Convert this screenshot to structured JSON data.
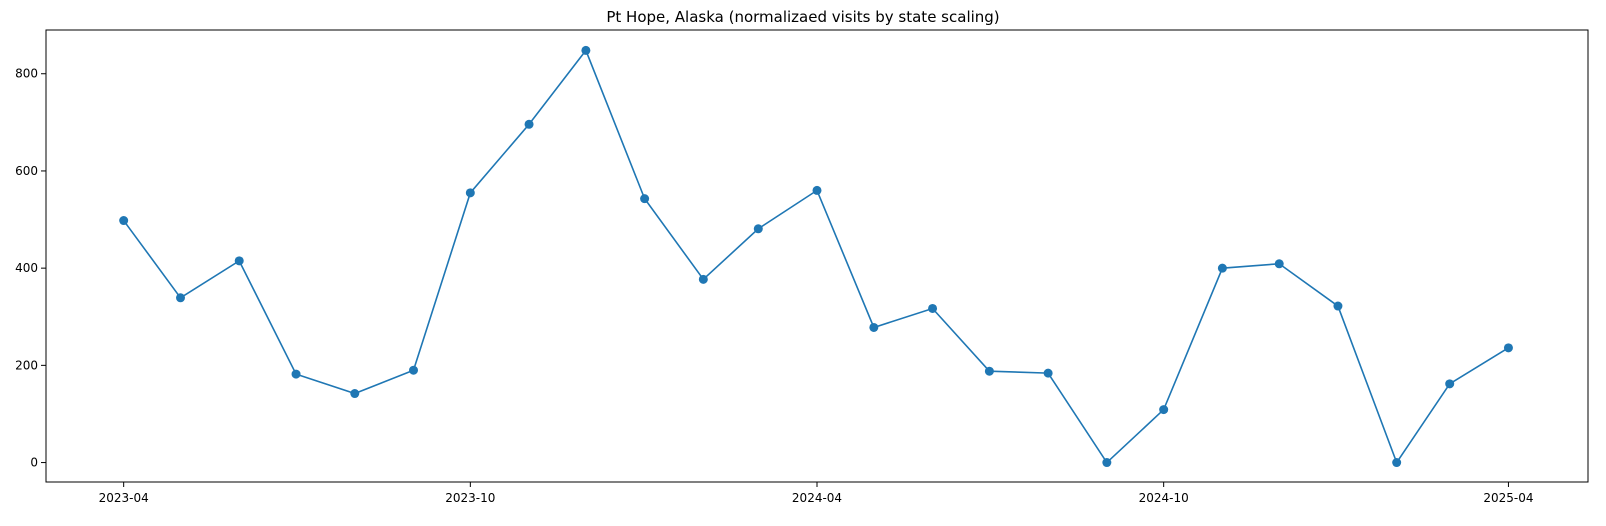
{
  "chart_data": {
    "type": "line",
    "title": "Pt Hope, Alaska (normalizaed visits by state scaling)",
    "xlabel": "",
    "ylabel": "",
    "x_ticks": [
      "2023-04",
      "2023-10",
      "2024-04",
      "2024-10",
      "2025-04"
    ],
    "y_ticks": [
      "0",
      "200",
      "400",
      "600",
      "800"
    ],
    "ylim": [
      -40,
      890
    ],
    "xlim": [
      "2023-02-19",
      "2025-05-13"
    ],
    "grid": false,
    "marker": "circle",
    "color": "#1f77b4",
    "series": [
      {
        "x": [
          "2023-04-01",
          "2023-05-01",
          "2023-06-01",
          "2023-07-01",
          "2023-08-01",
          "2023-09-01",
          "2023-10-01",
          "2023-11-01",
          "2023-12-01",
          "2024-01-01",
          "2024-02-01",
          "2024-03-01",
          "2024-04-01",
          "2024-05-01",
          "2024-06-01",
          "2024-07-01",
          "2024-08-01",
          "2024-09-01",
          "2024-10-01",
          "2024-11-01",
          "2024-12-01",
          "2025-01-01",
          "2025-02-01",
          "2025-03-01",
          "2025-04-01"
        ],
        "values": [
          498,
          339,
          415,
          182,
          142,
          190,
          555,
          696,
          848,
          543,
          377,
          481,
          560,
          278,
          317,
          188,
          184,
          0,
          109,
          400,
          409,
          322,
          0,
          162,
          236
        ]
      }
    ]
  }
}
